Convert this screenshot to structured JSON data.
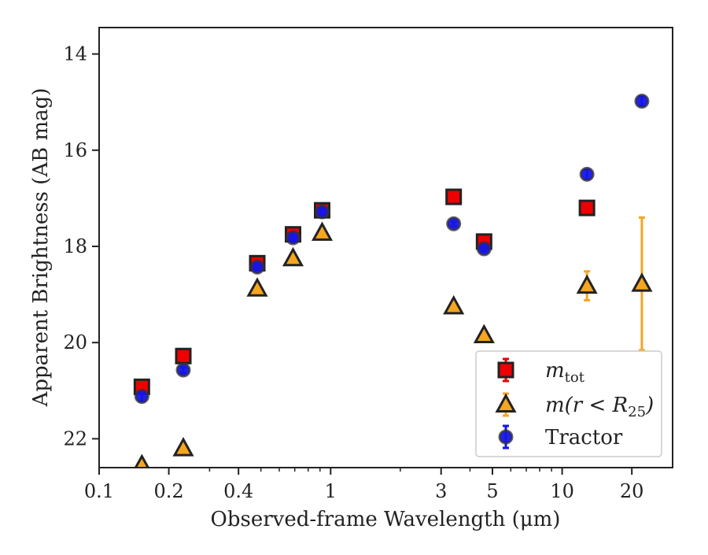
{
  "chart_data": {
    "type": "scatter",
    "xlabel": "Observed-frame Wavelength (μm)",
    "ylabel": "Apparent Brightness (AB mag)",
    "x_scale": "log",
    "xlim": [
      0.1,
      30
    ],
    "ylim": [
      22.6,
      13.45
    ],
    "y_inverted": true,
    "x_ticks": [
      0.1,
      0.2,
      0.4,
      1,
      3,
      5,
      10,
      20
    ],
    "x_tick_labels": [
      "0.1",
      "0.2",
      "0.4",
      "1",
      "3",
      "5",
      "10",
      "20"
    ],
    "y_ticks": [
      14,
      16,
      18,
      20,
      22
    ],
    "y_tick_labels": [
      "14",
      "16",
      "18",
      "20",
      "22"
    ],
    "grid": false,
    "legend_position": "lower-right",
    "series": [
      {
        "name": "m_tot",
        "legend_text": {
          "base": "m",
          "sub": "tot"
        },
        "marker": "square",
        "color": "#ee0000",
        "edge_color": "#222222",
        "points": [
          {
            "x": 0.153,
            "y": 20.92,
            "err": 0.1
          },
          {
            "x": 0.231,
            "y": 20.28,
            "err": 0.06
          },
          {
            "x": 0.482,
            "y": 18.35,
            "err": 0.06
          },
          {
            "x": 0.688,
            "y": 17.75,
            "err": 0.06
          },
          {
            "x": 0.919,
            "y": 17.25,
            "err": 0.06
          },
          {
            "x": 3.4,
            "y": 16.97,
            "err": 0.05
          },
          {
            "x": 4.6,
            "y": 17.9,
            "err": 0.05
          },
          {
            "x": 12.8,
            "y": 17.2,
            "err": 0.05
          }
        ]
      },
      {
        "name": "m(r < R25)",
        "legend_text": {
          "base": "m(r < R",
          "sub": "25",
          "tail": ")"
        },
        "marker": "triangle",
        "color": "#f5a520",
        "edge_color": "#222222",
        "points": [
          {
            "x": 0.153,
            "y": 22.55,
            "err": 0.0
          },
          {
            "x": 0.231,
            "y": 22.2,
            "err": 0.0
          },
          {
            "x": 0.482,
            "y": 18.88,
            "err": 0.0
          },
          {
            "x": 0.688,
            "y": 18.25,
            "err": 0.0
          },
          {
            "x": 0.919,
            "y": 17.72,
            "err": 0.0
          },
          {
            "x": 3.4,
            "y": 19.25,
            "err": 0.0
          },
          {
            "x": 4.6,
            "y": 19.85,
            "err": 0.0
          },
          {
            "x": 12.8,
            "y": 18.82,
            "err": 0.3
          },
          {
            "x": 22.1,
            "y": 18.78,
            "err": 1.38
          }
        ]
      },
      {
        "name": "Tractor",
        "legend_text": {
          "base": "Tractor"
        },
        "marker": "circle",
        "color": "#1515e6",
        "edge_color": "#333333",
        "points": [
          {
            "x": 0.153,
            "y": 21.12,
            "err": 0.1
          },
          {
            "x": 0.231,
            "y": 20.57,
            "err": 0.06
          },
          {
            "x": 0.482,
            "y": 18.43,
            "err": 0.06
          },
          {
            "x": 0.688,
            "y": 17.82,
            "err": 0.06
          },
          {
            "x": 0.919,
            "y": 17.28,
            "err": 0.06
          },
          {
            "x": 3.4,
            "y": 17.53,
            "err": 0.05
          },
          {
            "x": 4.6,
            "y": 18.05,
            "err": 0.05
          },
          {
            "x": 12.8,
            "y": 16.5,
            "err": 0.1
          },
          {
            "x": 22.1,
            "y": 14.98,
            "err": 0.1
          }
        ]
      }
    ]
  }
}
